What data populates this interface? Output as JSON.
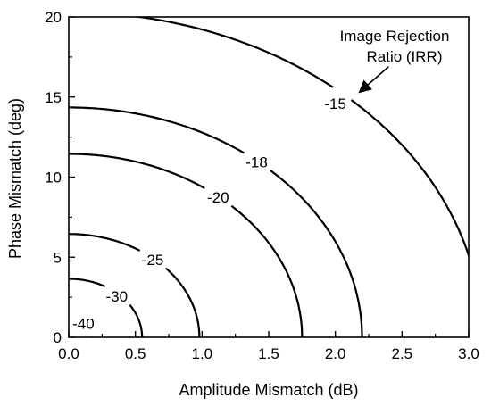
{
  "chart_data": {
    "type": "contour",
    "title": "",
    "xlabel": "Amplitude Mismatch (dB)",
    "ylabel": "Phase Mismatch (deg)",
    "xlim": [
      0,
      3.0
    ],
    "ylim": [
      0,
      20
    ],
    "x_ticks": [
      "0.0",
      "0.5",
      "1.0",
      "1.5",
      "2.0",
      "2.5",
      "3.0"
    ],
    "y_ticks": [
      "0",
      "5",
      "10",
      "15",
      "20"
    ],
    "grid": false,
    "legend": "none",
    "line_color": "#000000",
    "contours": [
      {
        "label": "-40",
        "x_intercept": 0.17,
        "y_intercept": 1.15,
        "label_at": {
          "x": 0.11,
          "y": 0.85
        }
      },
      {
        "label": "-30",
        "x_intercept": 0.55,
        "y_intercept": 3.65,
        "label_at": {
          "x": 0.36,
          "y": 2.55
        }
      },
      {
        "label": "-25",
        "x_intercept": 0.98,
        "y_intercept": 6.45,
        "label_at": {
          "x": 0.63,
          "y": 4.85
        }
      },
      {
        "label": "-20",
        "x_intercept": 1.75,
        "y_intercept": 11.45,
        "label_at": {
          "x": 1.12,
          "y": 8.75
        }
      },
      {
        "label": "-18",
        "x_intercept": 2.2,
        "y_intercept": 14.35,
        "label_at": {
          "x": 1.41,
          "y": 10.95
        }
      },
      {
        "label": "-15",
        "x_intercept": 3.1,
        "y_intercept": 20.3,
        "label_at": {
          "x": 2.0,
          "y": 14.6
        }
      }
    ],
    "annotation": {
      "lines": [
        "Image Rejection",
        "Ratio (IRR)"
      ],
      "arrow_from": {
        "x": 2.4,
        "y": 16.9
      },
      "arrow_to": {
        "x": 2.18,
        "y": 15.3
      }
    }
  }
}
